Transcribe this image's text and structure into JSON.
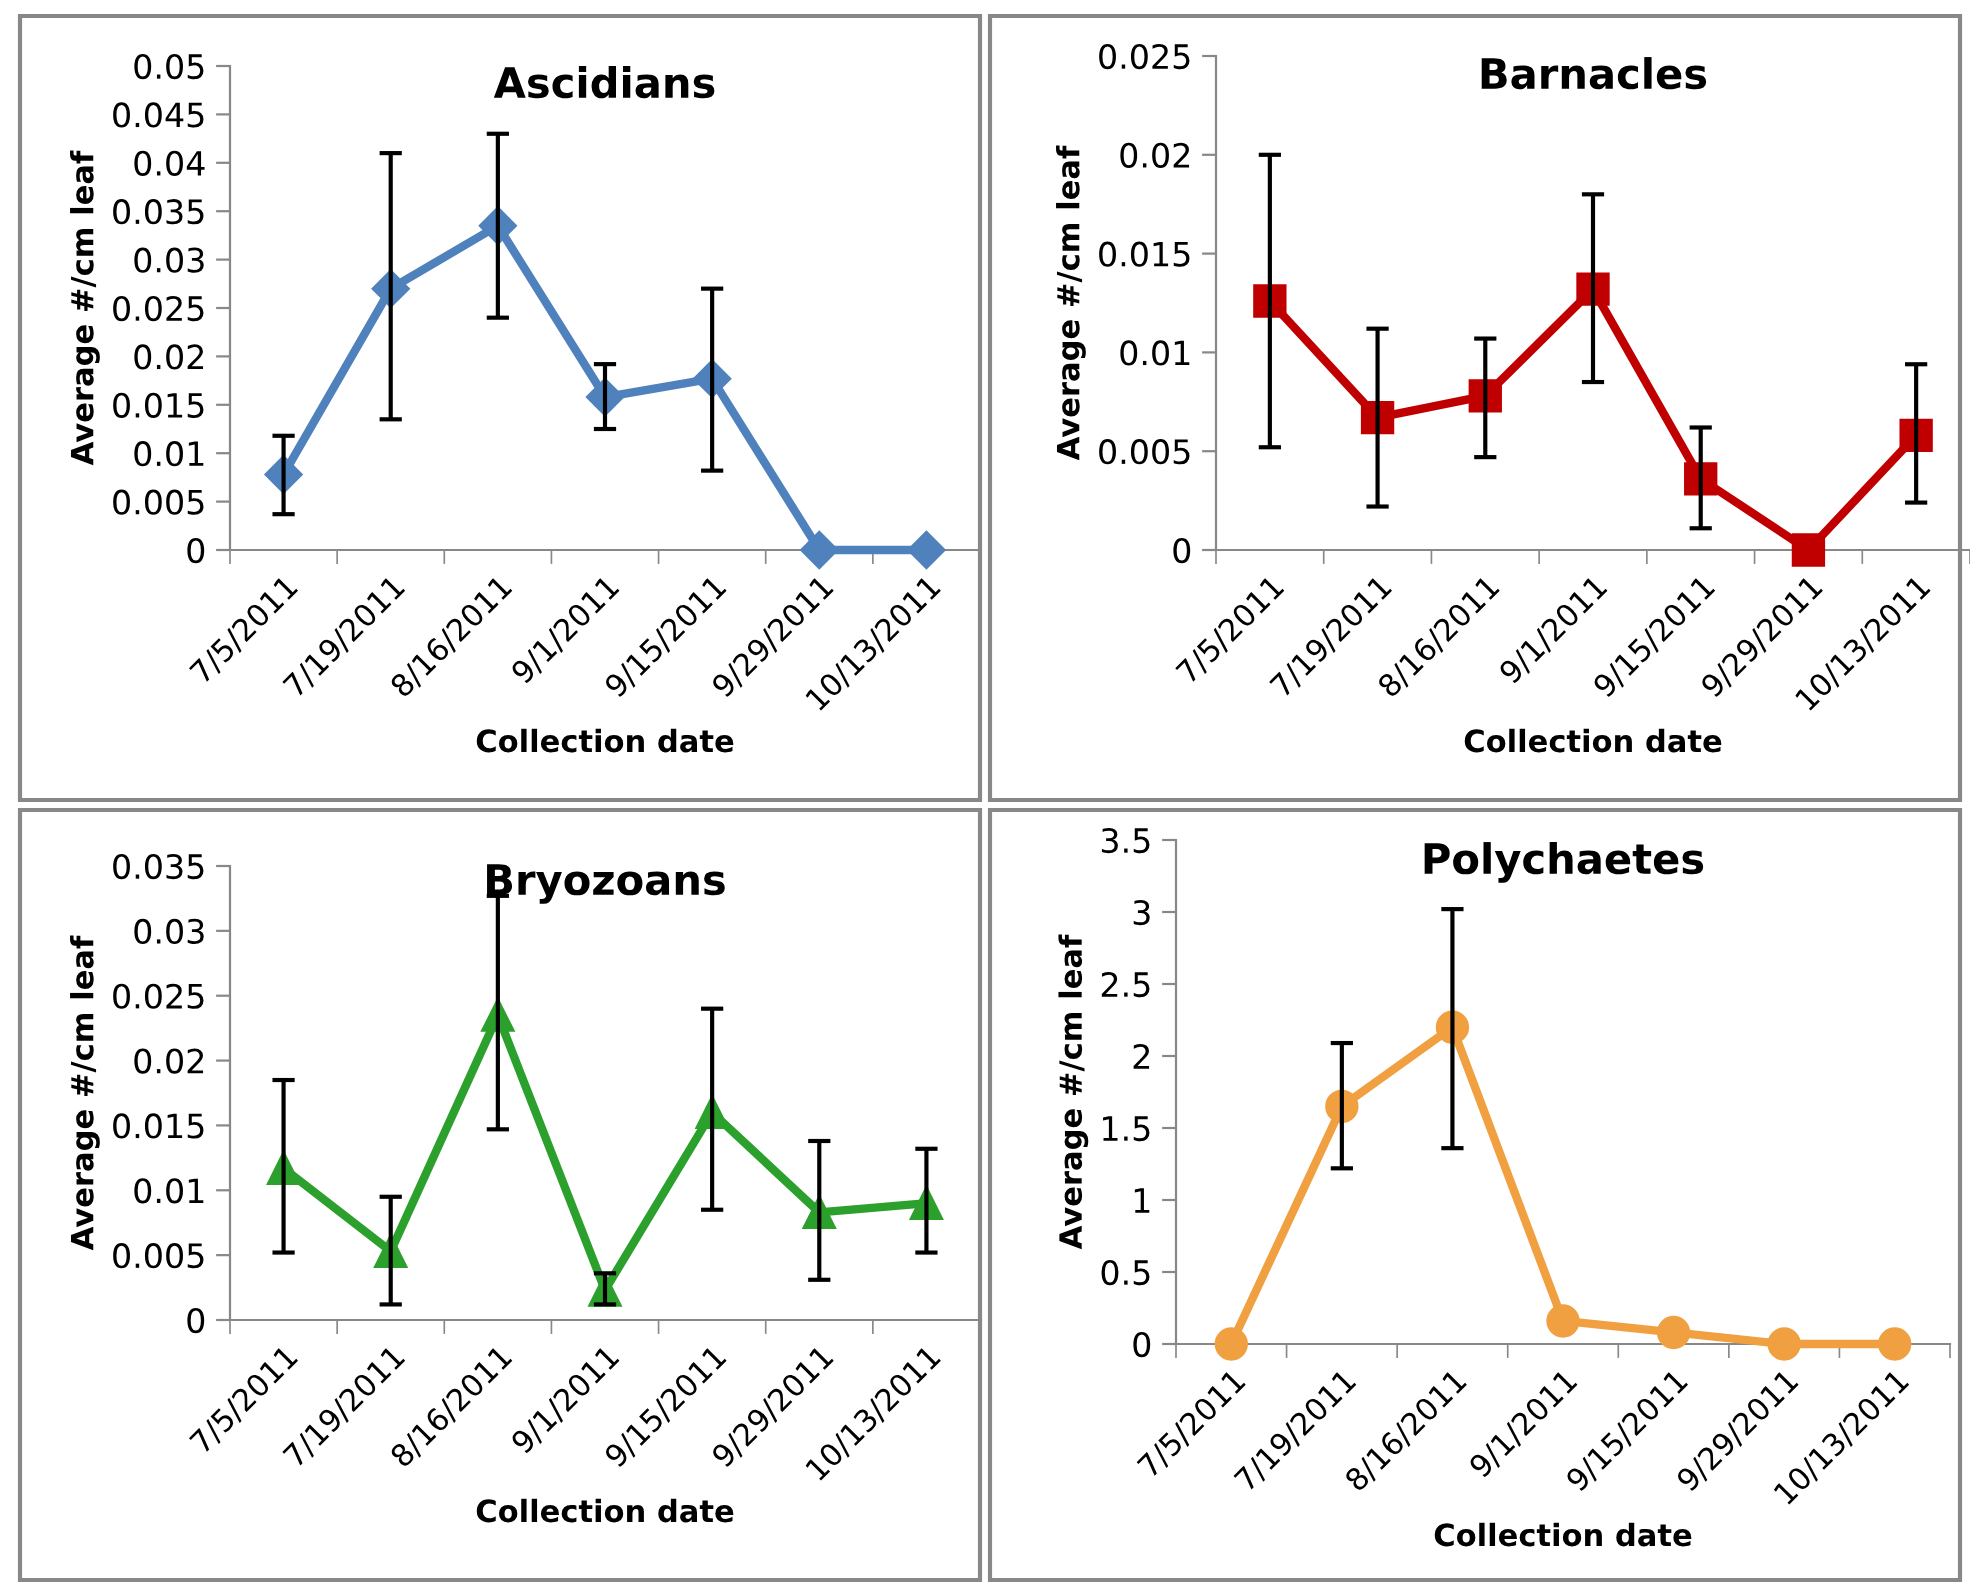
{
  "chart_data": [
    {
      "type": "line",
      "title": "Ascidians",
      "xlabel": "Collection date",
      "ylabel": "Average #/cm leaf",
      "categories": [
        "7/5/2011",
        "7/19/2011",
        "8/16/2011",
        "9/1/2011",
        "9/15/2011",
        "9/29/2011",
        "10/13/2011"
      ],
      "series": [
        {
          "color": "#4f81bd",
          "values": [
            0.0078,
            0.027,
            0.0335,
            0.0158,
            0.0177,
            0,
            0
          ],
          "errors": [
            [
              0.0037,
              0.0118
            ],
            [
              0.0135,
              0.041
            ],
            [
              0.024,
              0.043
            ],
            [
              0.0125,
              0.0192
            ],
            [
              0.0082,
              0.027
            ],
            null,
            null
          ]
        }
      ],
      "ylim": [
        0,
        0.05
      ],
      "yticks": [
        0,
        0.005,
        0.01,
        0.015,
        0.02,
        0.025,
        0.03,
        0.035,
        0.04,
        0.045,
        0.05
      ],
      "marker": "diamond",
      "grid": false,
      "legend": false
    },
    {
      "type": "line",
      "title": "Barnacles",
      "xlabel": "Collection date",
      "ylabel": "Average #/cm leaf",
      "categories": [
        "7/5/2011",
        "7/19/2011",
        "8/16/2011",
        "9/1/2011",
        "9/15/2011",
        "9/29/2011",
        "10/13/2011"
      ],
      "series": [
        {
          "color": "#c00000",
          "values": [
            0.0126,
            0.0067,
            0.0078,
            0.0132,
            0.0036,
            0,
            0.0058
          ],
          "errors": [
            [
              0.0052,
              0.02
            ],
            [
              0.0022,
              0.0112
            ],
            [
              0.0047,
              0.0107
            ],
            [
              0.0085,
              0.018
            ],
            [
              0.0011,
              0.0062
            ],
            null,
            [
              0.0024,
              0.0094
            ]
          ]
        }
      ],
      "ylim": [
        0,
        0.025
      ],
      "yticks": [
        0,
        0.005,
        0.01,
        0.015,
        0.02,
        0.025
      ],
      "marker": "square",
      "grid": false,
      "legend": false
    },
    {
      "type": "line",
      "title": "Bryozoans",
      "xlabel": "Collection date",
      "ylabel": "Average #/cm leaf",
      "categories": [
        "7/5/2011",
        "7/19/2011",
        "8/16/2011",
        "9/1/2011",
        "9/15/2011",
        "9/29/2011",
        "10/13/2011"
      ],
      "series": [
        {
          "color": "#2ca02c",
          "values": [
            0.0117,
            0.0053,
            0.0235,
            0.0023,
            0.016,
            0.0083,
            0.009
          ],
          "errors": [
            [
              0.0052,
              0.0185
            ],
            [
              0.0012,
              0.0095
            ],
            [
              0.0147,
              0.0327
            ],
            [
              0.0012,
              0.0036
            ],
            [
              0.0085,
              0.024
            ],
            [
              0.0031,
              0.0138
            ],
            [
              0.0052,
              0.0132
            ]
          ]
        }
      ],
      "ylim": [
        0,
        0.035
      ],
      "yticks": [
        0,
        0.005,
        0.01,
        0.015,
        0.02,
        0.025,
        0.03,
        0.035
      ],
      "marker": "triangle",
      "grid": false,
      "legend": false
    },
    {
      "type": "line",
      "title": "Polychaetes",
      "xlabel": "Collection date",
      "ylabel": "Average #/cm leaf",
      "categories": [
        "7/5/2011",
        "7/19/2011",
        "8/16/2011",
        "9/1/2011",
        "9/15/2011",
        "9/29/2011",
        "10/13/2011"
      ],
      "series": [
        {
          "color": "#f0a040",
          "values": [
            0,
            1.65,
            2.2,
            0.16,
            0.08,
            0,
            0
          ],
          "errors": [
            null,
            [
              1.22,
              2.09
            ],
            [
              1.36,
              3.02
            ],
            null,
            null,
            null,
            null
          ]
        }
      ],
      "ylim": [
        0,
        3.5
      ],
      "yticks": [
        0,
        0.5,
        1,
        1.5,
        2,
        2.5,
        3,
        3.5
      ],
      "marker": "circle",
      "grid": false,
      "legend": false
    }
  ]
}
